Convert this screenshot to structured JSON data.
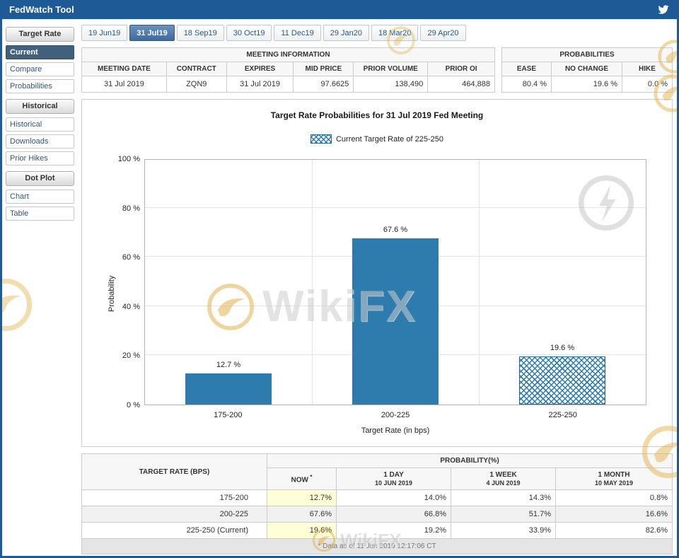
{
  "header": {
    "title": "FedWatch Tool"
  },
  "sidebar": {
    "sections": [
      {
        "header": "Target Rate",
        "items": [
          {
            "label": "Current",
            "selected": true
          },
          {
            "label": "Compare"
          },
          {
            "label": "Probabilities"
          }
        ]
      },
      {
        "header": "Historical",
        "items": [
          {
            "label": "Historical"
          },
          {
            "label": "Downloads"
          },
          {
            "label": "Prior Hikes"
          }
        ]
      },
      {
        "header": "Dot Plot",
        "items": [
          {
            "label": "Chart"
          },
          {
            "label": "Table"
          }
        ]
      }
    ]
  },
  "tabs": [
    {
      "label": "19 Jun19"
    },
    {
      "label": "31 Jul19",
      "selected": true
    },
    {
      "label": "18 Sep19"
    },
    {
      "label": "30 Oct19"
    },
    {
      "label": "11 Dec19"
    },
    {
      "label": "29 Jan20"
    },
    {
      "label": "18 Mar20"
    },
    {
      "label": "29 Apr20"
    }
  ],
  "meeting_info": {
    "title": "MEETING INFORMATION",
    "columns": [
      "MEETING DATE",
      "CONTRACT",
      "EXPIRES",
      "MID PRICE",
      "PRIOR VOLUME",
      "PRIOR OI"
    ],
    "values": [
      "31 Jul 2019",
      "ZQN9",
      "31 Jul 2019",
      "97.6625",
      "138,490",
      "464,888"
    ]
  },
  "probabilities": {
    "title": "PROBABILITIES",
    "columns": [
      "EASE",
      "NO CHANGE",
      "HIKE"
    ],
    "values": [
      "80.4 %",
      "19.6 %",
      "0.0 %"
    ]
  },
  "chart_data": {
    "type": "bar",
    "title": "Target Rate Probabilities for 31 Jul 2019 Fed Meeting",
    "legend": "Current Target Rate of 225-250",
    "categories": [
      "175-200",
      "200-225",
      "225-250"
    ],
    "values": [
      12.7,
      67.6,
      19.6
    ],
    "value_labels": [
      "12.7 %",
      "67.6 %",
      "19.6 %"
    ],
    "current_index": 2,
    "xlabel": "Target Rate (in bps)",
    "ylabel": "Probability",
    "ylim": [
      0,
      100
    ],
    "ytick_step": 20,
    "ytick_suffix": " %",
    "bar_color": "#2d7cad",
    "grid": true,
    "legend_position": "top"
  },
  "probability_table": {
    "row_header": "TARGET RATE (BPS)",
    "col_group_header": "PROBABILITY(%)",
    "columns": [
      {
        "label": "NOW",
        "sup": "*"
      },
      {
        "label": "1 DAY",
        "sub": "10 JUN 2019"
      },
      {
        "label": "1 WEEK",
        "sub": "4 JUN 2019"
      },
      {
        "label": "1 MONTH",
        "sub": "10 MAY 2019"
      }
    ],
    "rows": [
      {
        "label": "175-200",
        "values": [
          "12.7%",
          "14.0%",
          "14.3%",
          "0.8%"
        ]
      },
      {
        "label": "200-225",
        "values": [
          "67.6%",
          "66.8%",
          "51.7%",
          "16.6%"
        ]
      },
      {
        "label": "225-250 (Current)",
        "values": [
          "19.6%",
          "19.2%",
          "33.9%",
          "82.6%"
        ]
      }
    ],
    "footnote": "* Data as of 11 Jun 2019 12:17:06 CT"
  },
  "watermark": {
    "text": "WikiFX"
  }
}
